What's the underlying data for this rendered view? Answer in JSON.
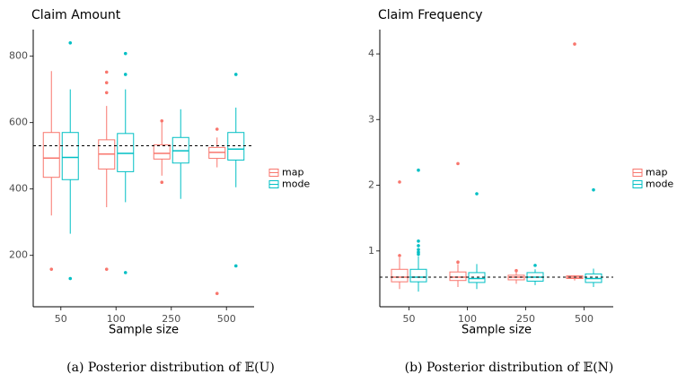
{
  "chart_data": [
    {
      "type": "boxplot",
      "title": "Claim Amount",
      "x_label": "Sample size",
      "caption": "(a) Posterior distribution of 𝔼(U)",
      "categories": [
        "50",
        "100",
        "250",
        "500"
      ],
      "ylim": [
        45,
        880
      ],
      "yticks": [
        200,
        400,
        600,
        800
      ],
      "reference_line": 530,
      "legend": "right",
      "grid": false,
      "series": [
        {
          "name": "map",
          "color": "#F8766D",
          "boxes": [
            {
              "low": 320,
              "q1": 435,
              "median": 493,
              "q3": 570,
              "high": 755,
              "outliers": [
                158
              ]
            },
            {
              "low": 345,
              "q1": 460,
              "median": 505,
              "q3": 548,
              "high": 650,
              "outliers": [
                752,
                720,
                690,
                158
              ]
            },
            {
              "low": 440,
              "q1": 490,
              "median": 507,
              "q3": 533,
              "high": 600,
              "outliers": [
                605,
                420
              ]
            },
            {
              "low": 465,
              "q1": 492,
              "median": 510,
              "q3": 525,
              "high": 555,
              "outliers": [
                580,
                85
              ]
            }
          ]
        },
        {
          "name": "mode",
          "color": "#00BFC4",
          "boxes": [
            {
              "low": 265,
              "q1": 428,
              "median": 495,
              "q3": 570,
              "high": 700,
              "outliers": [
                840,
                130
              ]
            },
            {
              "low": 360,
              "q1": 452,
              "median": 507,
              "q3": 567,
              "high": 700,
              "outliers": [
                808,
                745,
                148
              ]
            },
            {
              "low": 370,
              "q1": 478,
              "median": 515,
              "q3": 555,
              "high": 640,
              "outliers": []
            },
            {
              "low": 405,
              "q1": 487,
              "median": 520,
              "q3": 570,
              "high": 645,
              "outliers": [
                745,
                168
              ]
            }
          ]
        }
      ]
    },
    {
      "type": "boxplot",
      "title": "Claim Frequency",
      "x_label": "Sample size",
      "caption": "(b) Posterior distribution of 𝔼(N)",
      "categories": [
        "50",
        "100",
        "250",
        "500"
      ],
      "ylim": [
        0.15,
        4.37
      ],
      "yticks": [
        1,
        2,
        3,
        4
      ],
      "reference_line": 0.6,
      "legend": "right",
      "grid": false,
      "series": [
        {
          "name": "map",
          "color": "#F8766D",
          "boxes": [
            {
              "low": 0.42,
              "q1": 0.53,
              "median": 0.6,
              "q3": 0.72,
              "high": 0.9,
              "outliers": [
                2.05,
                0.93
              ]
            },
            {
              "low": 0.45,
              "q1": 0.55,
              "median": 0.6,
              "q3": 0.68,
              "high": 0.8,
              "outliers": [
                2.33,
                0.83
              ]
            },
            {
              "low": 0.5,
              "q1": 0.56,
              "median": 0.6,
              "q3": 0.63,
              "high": 0.68,
              "outliers": [
                0.7
              ]
            },
            {
              "low": 0.55,
              "q1": 0.58,
              "median": 0.6,
              "q3": 0.62,
              "high": 0.63,
              "outliers": [
                4.15
              ]
            }
          ]
        },
        {
          "name": "mode",
          "color": "#00BFC4",
          "boxes": [
            {
              "low": 0.38,
              "q1": 0.53,
              "median": 0.6,
              "q3": 0.72,
              "high": 0.92,
              "outliers": [
                2.23,
                1.15,
                1.08,
                1.02,
                0.98,
                0.95
              ]
            },
            {
              "low": 0.42,
              "q1": 0.52,
              "median": 0.58,
              "q3": 0.67,
              "high": 0.8,
              "outliers": [
                1.87
              ]
            },
            {
              "low": 0.48,
              "q1": 0.54,
              "median": 0.6,
              "q3": 0.67,
              "high": 0.72,
              "outliers": [
                0.78
              ]
            },
            {
              "low": 0.45,
              "q1": 0.52,
              "median": 0.58,
              "q3": 0.65,
              "high": 0.73,
              "outliers": [
                1.93
              ]
            }
          ]
        }
      ]
    }
  ]
}
